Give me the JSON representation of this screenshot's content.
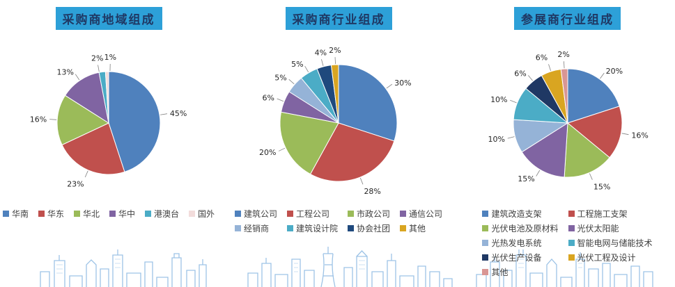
{
  "style": {
    "background": "#FFFFFF",
    "title_bg": "#2DA0D8",
    "title_text": "#1F3864",
    "label_color": "#262626",
    "legend_text": "#404040",
    "leader_line": "#808080",
    "skyline": "#9DC3E6"
  },
  "chart_data": [
    {
      "type": "pie",
      "title": "采购商地域组成",
      "labels": [
        "华南",
        "华东",
        "华北",
        "华中",
        "港澳台",
        "国外"
      ],
      "values": [
        45,
        23,
        16,
        13,
        2,
        1
      ],
      "data_labels": [
        "45%",
        "23%",
        "16%",
        "13%",
        "2%",
        "1%"
      ],
      "colors": [
        "#4F81BD",
        "#C0504D",
        "#9BBB59",
        "#8064A2",
        "#4BACC6",
        "#F2DCDB"
      ],
      "start_angle": 0,
      "direction": "clockwise",
      "legend_position": "bottom",
      "legend_cols": 6,
      "radius": 74
    },
    {
      "type": "pie",
      "title": "采购商行业组成",
      "labels": [
        "建筑公司",
        "工程公司",
        "市政公司",
        "通信公司",
        "经销商",
        "建筑设计院",
        "协会社团",
        "其他"
      ],
      "values": [
        30,
        28,
        20,
        6,
        5,
        5,
        4,
        2
      ],
      "data_labels": [
        "30%",
        "28%",
        "20%",
        "6%",
        "5%",
        "5%",
        "4%",
        "2%"
      ],
      "colors": [
        "#4F81BD",
        "#C0504D",
        "#9BBB59",
        "#8064A2",
        "#95B3D7",
        "#4BACC6",
        "#1F497D",
        "#D9A521"
      ],
      "start_angle": 0,
      "direction": "clockwise",
      "legend_position": "bottom",
      "legend_cols": 4,
      "radius": 84
    },
    {
      "type": "pie",
      "title": "参展商行业组成",
      "labels": [
        "建筑改造支架",
        "工程施工支架",
        "光伏电池及原材料",
        "光伏太阳能",
        "光热发电系统",
        "智能电网与储能技术",
        "光伏生产设备",
        "光伏工程及设计",
        "其他"
      ],
      "values": [
        20,
        16,
        15,
        15,
        10,
        10,
        6,
        6,
        2
      ],
      "data_labels": [
        "20%",
        "16%",
        "15%",
        "15%",
        "10%",
        "10%",
        "6%",
        "6%",
        "2%"
      ],
      "colors": [
        "#4F81BD",
        "#C0504D",
        "#9BBB59",
        "#8064A2",
        "#95B3D7",
        "#4BACC6",
        "#1F3864",
        "#D9A521",
        "#D99694"
      ],
      "start_angle": 0,
      "direction": "clockwise",
      "legend_position": "bottom",
      "legend_cols": 2,
      "radius": 78
    }
  ]
}
